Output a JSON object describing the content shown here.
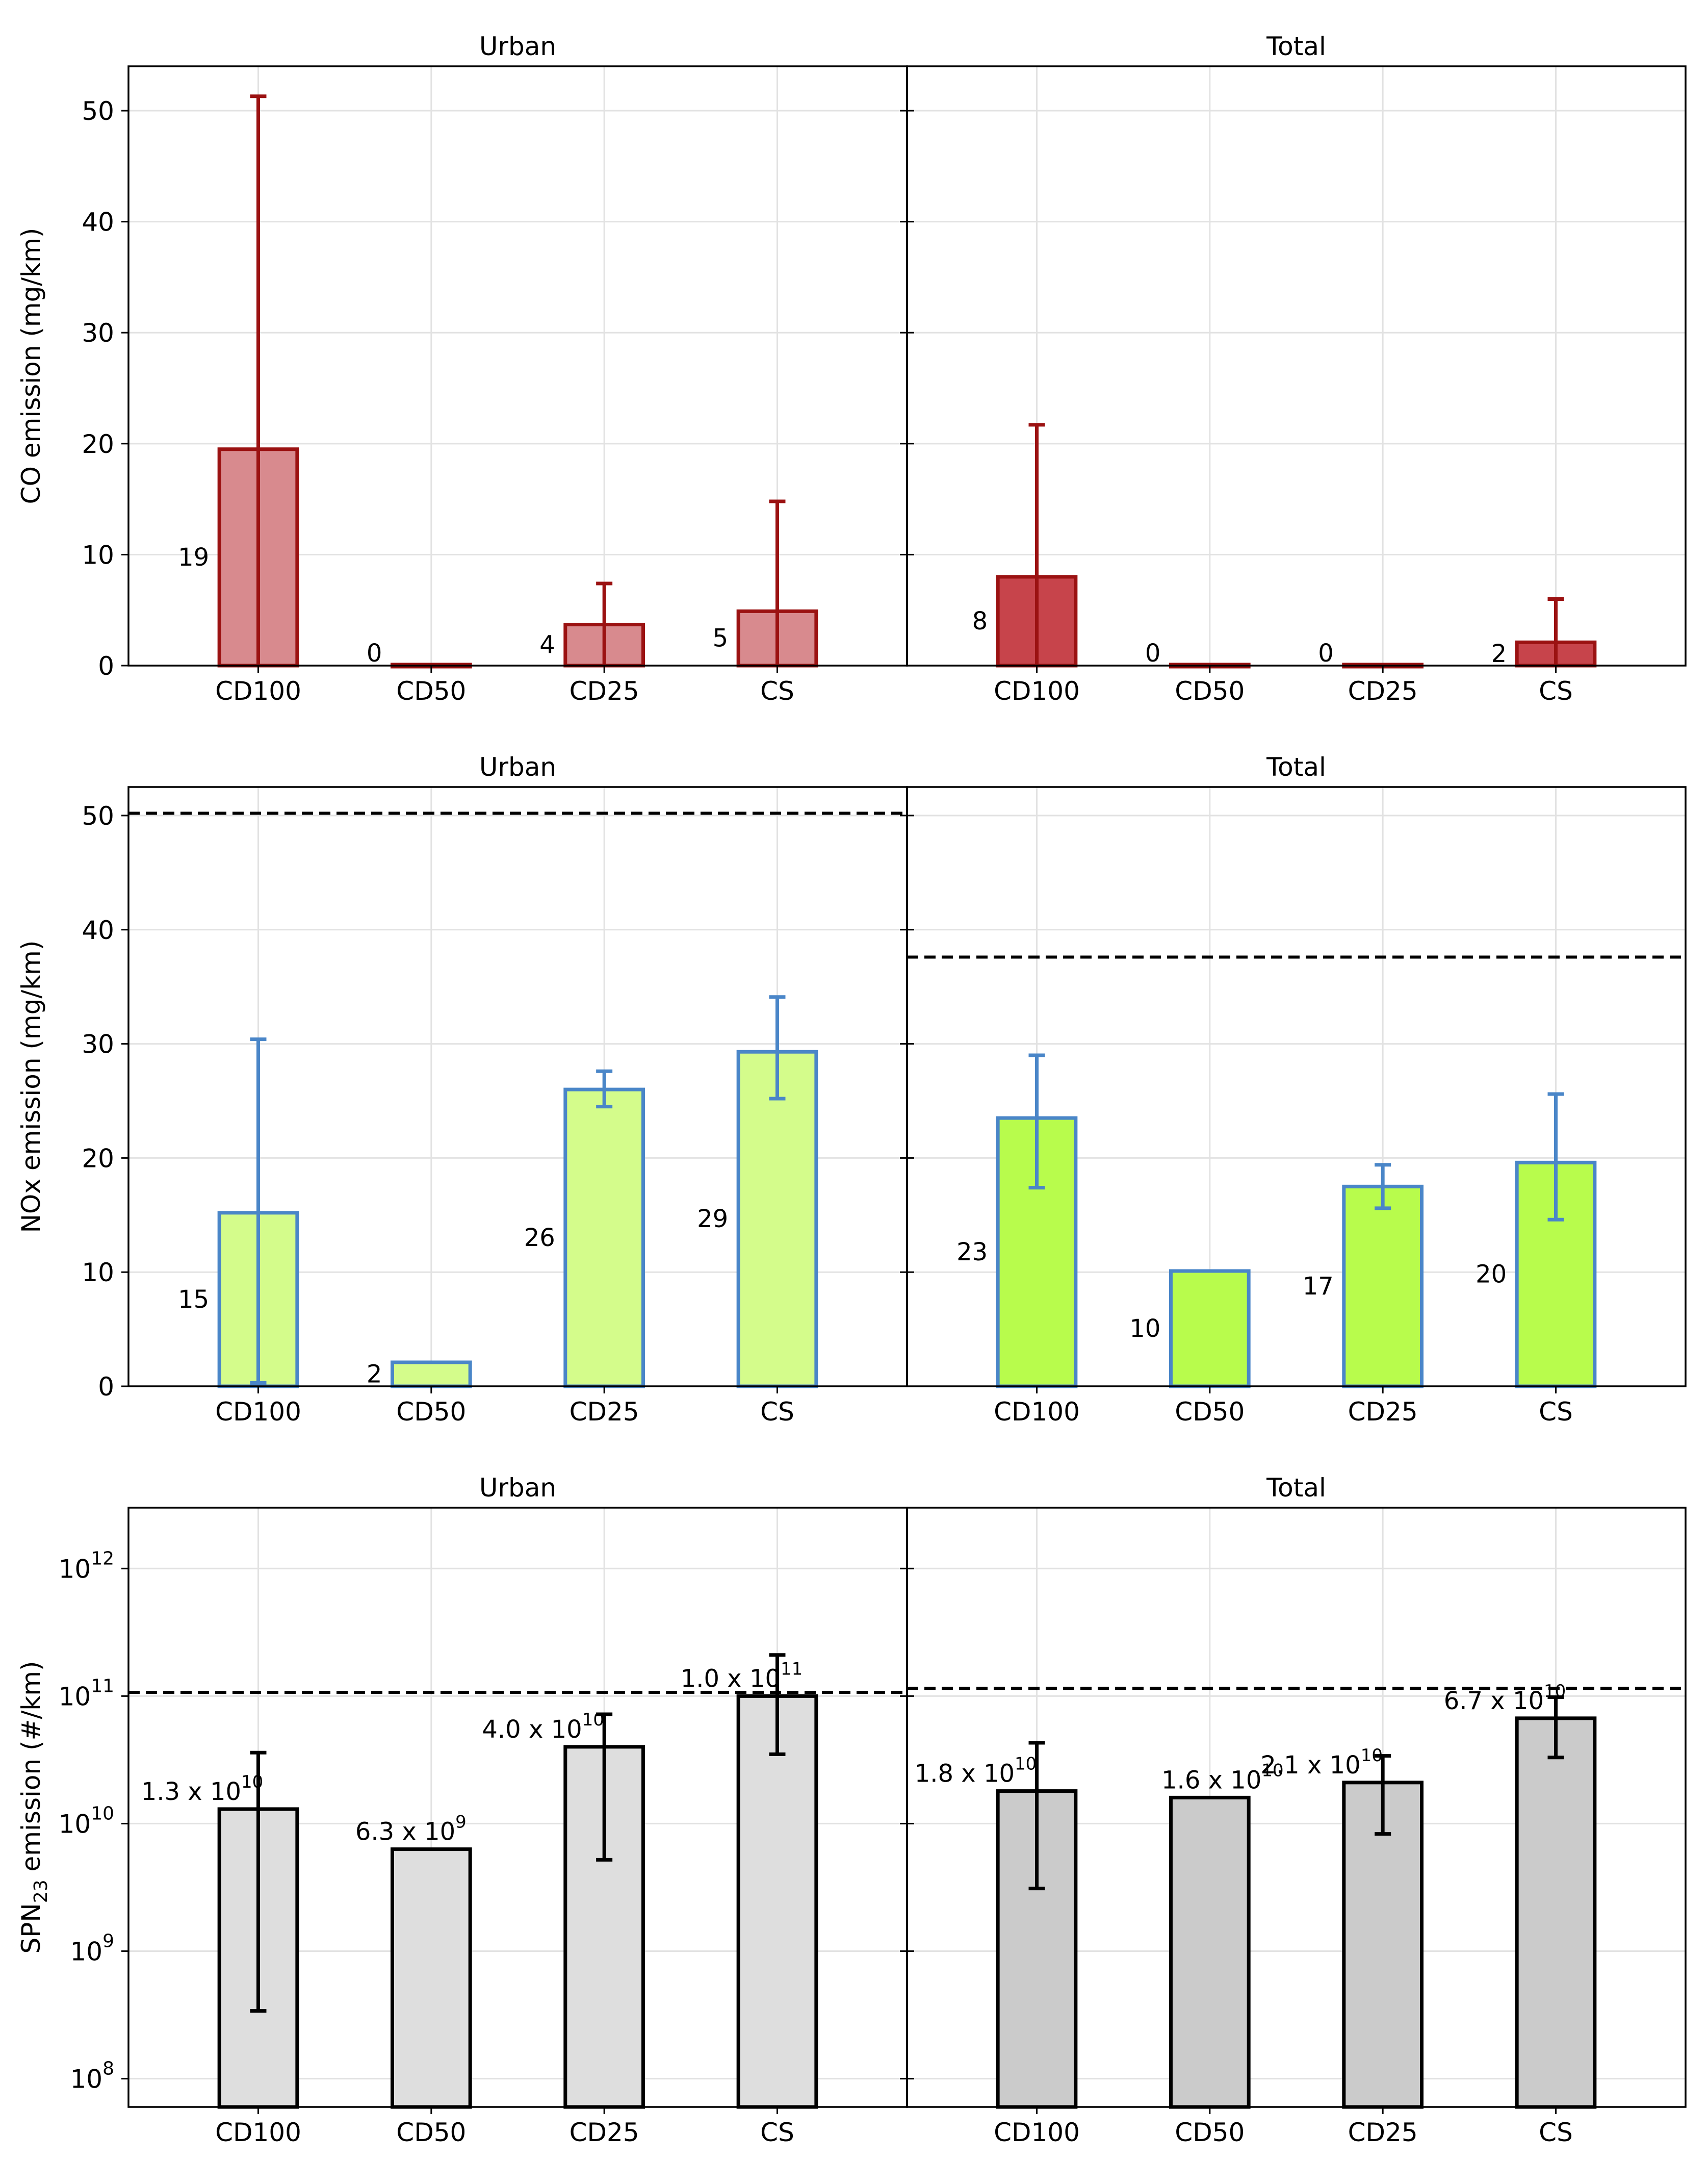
{
  "chart_data": [
    {
      "type": "bar",
      "title": "Urban",
      "ylabel": "CO emission (mg/km)",
      "y_scale": "linear",
      "ylim": [
        0,
        54
      ],
      "yticks": [
        0,
        10,
        20,
        30,
        40,
        50
      ],
      "grid": true,
      "categories": [
        "CD100",
        "CD50",
        "CD25",
        "CS"
      ],
      "values": [
        19.5,
        0,
        3.7,
        4.9
      ],
      "error_low": [
        0,
        0,
        0,
        0
      ],
      "error_high": [
        51.3,
        0,
        7.4,
        14.8
      ],
      "value_labels": [
        "19",
        "0",
        "4",
        "5"
      ],
      "colors": {
        "fill": "#d88a8e",
        "edge": "#9b1212",
        "error": "#9b1212"
      }
    },
    {
      "type": "bar",
      "title": "Total",
      "ylabel": "",
      "y_scale": "linear",
      "ylim": [
        0,
        54
      ],
      "yticks": [
        0,
        10,
        20,
        30,
        40,
        50
      ],
      "grid": true,
      "categories": [
        "CD100",
        "CD50",
        "CD25",
        "CS"
      ],
      "values": [
        8.0,
        0,
        0,
        2.1
      ],
      "error_low": [
        0,
        0,
        0,
        0
      ],
      "error_high": [
        21.7,
        0,
        0,
        6.0
      ],
      "value_labels": [
        "8",
        "0",
        "0",
        "2"
      ],
      "colors": {
        "fill": "#c7444b",
        "edge": "#9b1212",
        "error": "#9b1212"
      }
    },
    {
      "type": "bar",
      "title": "Urban",
      "ylabel": "NOx emission (mg/km)",
      "y_scale": "linear",
      "ylim": [
        0,
        52.5
      ],
      "yticks": [
        0,
        10,
        20,
        30,
        40,
        50
      ],
      "grid": true,
      "categories": [
        "CD100",
        "CD50",
        "CD25",
        "CS"
      ],
      "values": [
        15.2,
        2.1,
        26.0,
        29.3
      ],
      "error_low": [
        0.3,
        2.1,
        24.5,
        25.2
      ],
      "error_high": [
        30.4,
        2.1,
        27.6,
        34.1
      ],
      "value_labels": [
        "15",
        "2",
        "26",
        "29"
      ],
      "limit": 50.2,
      "colors": {
        "fill": "#d4fc8b",
        "edge": "#4a86c8",
        "error": "#4a86c8"
      }
    },
    {
      "type": "bar",
      "title": "Total",
      "ylabel": "",
      "y_scale": "linear",
      "ylim": [
        0,
        52.5
      ],
      "yticks": [
        0,
        10,
        20,
        30,
        40,
        50
      ],
      "grid": true,
      "categories": [
        "CD100",
        "CD50",
        "CD25",
        "CS"
      ],
      "values": [
        23.5,
        10.1,
        17.5,
        19.6
      ],
      "error_low": [
        17.4,
        10.1,
        15.6,
        14.6
      ],
      "error_high": [
        29.0,
        10.1,
        19.4,
        25.6
      ],
      "value_labels": [
        "23",
        "10",
        "17",
        "20"
      ],
      "limit": 37.6,
      "colors": {
        "fill": "#b8fc4c",
        "edge": "#4a86c8",
        "error": "#4a86c8"
      }
    },
    {
      "type": "bar",
      "title": "Urban",
      "ylabel": "SPN",
      "ylabel_subscript": "23",
      "ylabel_suffix": " emission (#/km)",
      "y_scale": "log",
      "ylim": [
        60000000.0,
        3000000000000.0
      ],
      "yticks": [
        100000000.0,
        1000000000.0,
        10000000000.0,
        100000000000.0,
        1000000000000.0
      ],
      "ytick_labels": [
        {
          "base": "10",
          "exp": "8"
        },
        {
          "base": "10",
          "exp": "9"
        },
        {
          "base": "10",
          "exp": "10"
        },
        {
          "base": "10",
          "exp": "11"
        },
        {
          "base": "10",
          "exp": "12"
        }
      ],
      "grid": true,
      "categories": [
        "CD100",
        "CD50",
        "CD25",
        "CS"
      ],
      "values": [
        13000000000.0,
        6300000000.0,
        40000000000.0,
        100000000000.0
      ],
      "error_low": [
        340000000.0,
        6300000000.0,
        5200000000.0,
        35000000000.0
      ],
      "error_high": [
        36000000000.0,
        6300000000.0,
        72000000000.0,
        210000000000.0
      ],
      "value_labels": [
        {
          "mantissa": "1.3 x 10",
          "exp": "10"
        },
        {
          "mantissa": "6.3 x 10",
          "exp": "9"
        },
        {
          "mantissa": "4.0 x 10",
          "exp": "10"
        },
        {
          "mantissa": "1.0 x 10",
          "exp": "11"
        }
      ],
      "limit": 107000000000.0,
      "colors": {
        "fill": "#dedede",
        "edge": "#000000",
        "error": "#000000"
      }
    },
    {
      "type": "bar",
      "title": "Total",
      "ylabel": "",
      "y_scale": "log",
      "ylim": [
        60000000.0,
        3000000000000.0
      ],
      "yticks": [
        100000000.0,
        1000000000.0,
        10000000000.0,
        100000000000.0,
        1000000000000.0
      ],
      "grid": true,
      "categories": [
        "CD100",
        "CD50",
        "CD25",
        "CS"
      ],
      "values": [
        18000000000.0,
        16000000000.0,
        21000000000.0,
        67000000000.0
      ],
      "error_low": [
        3100000000.0,
        16000000000.0,
        8300000000.0,
        33000000000.0
      ],
      "error_high": [
        43000000000.0,
        16000000000.0,
        34000000000.0,
        98000000000.0
      ],
      "value_labels": [
        {
          "mantissa": "1.8 x 10",
          "exp": "10"
        },
        {
          "mantissa": "1.6 x 10",
          "exp": "10"
        },
        {
          "mantissa": "2.1 x 10",
          "exp": "10"
        },
        {
          "mantissa": "6.7 x 10",
          "exp": "10"
        }
      ],
      "limit": 115000000000.0,
      "colors": {
        "fill": "#cbcbcb",
        "edge": "#000000",
        "error": "#000000"
      }
    }
  ]
}
